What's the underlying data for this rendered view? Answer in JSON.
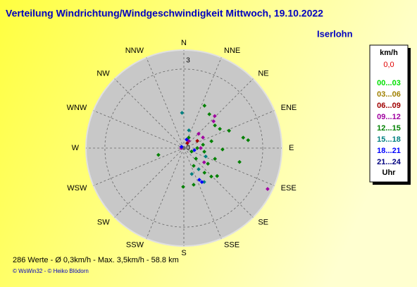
{
  "chart_data": {
    "type": "polar-scatter",
    "title": "Verteilung Windrichtung/Windgeschwindigkeit  Mittwoch, 19.10.2022",
    "subtitle": "Iserlohn",
    "directions": [
      "N",
      "NNE",
      "NE",
      "ENE",
      "E",
      "ESE",
      "SE",
      "SSE",
      "S",
      "SSW",
      "SW",
      "WSW",
      "W",
      "WNW",
      "NW",
      "NNW"
    ],
    "rlim": [
      0,
      3.72
    ],
    "rticks": [
      0,
      3
    ],
    "legend_title": "km/h",
    "legend_calm": "0,0",
    "legend_unit": "Uhr",
    "series": [
      {
        "name": "00...03",
        "color": "#00e000",
        "theta": [],
        "values": []
      },
      {
        "name": "03...06",
        "color": "#a08000",
        "theta": [],
        "values": []
      },
      {
        "name": "06...09",
        "color": "#a00000",
        "theta": [
          62,
          35
        ],
        "values": [
          0.58,
          0.23
        ]
      },
      {
        "name": "09...12",
        "color": "#a000a0",
        "theta": [
          44,
          48,
          46,
          61,
          90,
          125,
          116,
          35,
          270
        ],
        "values": [
          1.69,
          1.52,
          0.78,
          0.83,
          0.64,
          0.94,
          3.54,
          0.33,
          0.1
        ]
      },
      {
        "name": "12...15",
        "color": "#008000",
        "theta": [
          26,
          37,
          54,
          62,
          69,
          80,
          83,
          76,
          92,
          104,
          109,
          123,
          136,
          130,
          140,
          151,
          255,
          181,
          165,
          80,
          90,
          25,
          114,
          131,
          100
        ],
        "values": [
          1.79,
          1.61,
          1.46,
          1.55,
          1.84,
          2.29,
          2.46,
          1.08,
          1.47,
          2.18,
          1.25,
          1.09,
          1.5,
          1.65,
          1.22,
          0.77,
          1.0,
          1.47,
          1.44,
          0.74,
          0.51,
          0.44,
          0.32,
          0.61,
          0.79
        ]
      },
      {
        "name": "15...18",
        "color": "#008080",
        "theta": [
          357,
          16,
          111,
          145,
          149,
          163
        ],
        "values": [
          1.34,
          0.7,
          0.89,
          0.98,
          1.5,
          1.03
        ]
      },
      {
        "name": "18...21",
        "color": "#0000ff",
        "theta": [
          18,
          152,
          154,
          300,
          101
        ],
        "values": [
          0.34,
          1.46,
          1.34,
          0.1,
          0.41
        ]
      },
      {
        "name": "21...24",
        "color": "#000080",
        "theta": [],
        "values": []
      }
    ],
    "footer": "286 Werte   -   Ø 0,3km/h   -   Max. 3,5km/h   -   58.8 km",
    "credits": "© WsWin32  -  © Heiko Blödorn"
  }
}
